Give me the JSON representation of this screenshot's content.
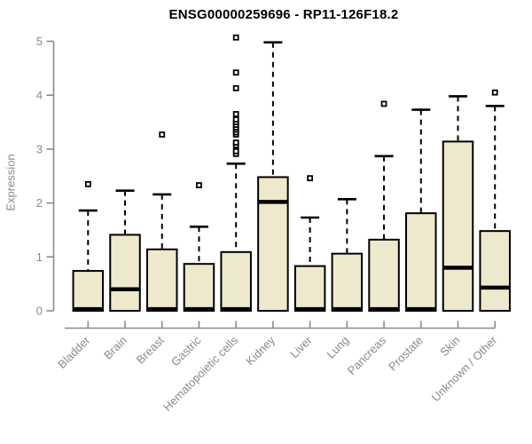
{
  "chart_data": {
    "type": "boxplot",
    "title": "ENSG00000259696 - RP11-126F18.2",
    "ylabel": "Expression",
    "xlabel": "",
    "ylim": [
      0,
      5
    ],
    "yticks": [
      0,
      1,
      2,
      3,
      4,
      5
    ],
    "grid": "off",
    "legend": "none",
    "categories": [
      "Bladder",
      "Brain",
      "Breast",
      "Gastric",
      "Hematopoietic cells",
      "Kidney",
      "Liver",
      "Lung",
      "Pancreas",
      "Prostate",
      "Skin",
      "Unknown / Other"
    ],
    "series": [
      {
        "name": "Bladder",
        "q1": 0,
        "median": 0.03,
        "q3": 0.74,
        "whisker_low": 0,
        "whisker_high": 1.86,
        "outliers": [
          2.35
        ]
      },
      {
        "name": "Brain",
        "q1": 0,
        "median": 0.4,
        "q3": 1.41,
        "whisker_low": 0,
        "whisker_high": 2.23,
        "outliers": []
      },
      {
        "name": "Breast",
        "q1": 0,
        "median": 0.03,
        "q3": 1.14,
        "whisker_low": 0,
        "whisker_high": 2.16,
        "outliers": [
          3.27
        ]
      },
      {
        "name": "Gastric",
        "q1": 0,
        "median": 0.03,
        "q3": 0.87,
        "whisker_low": 0,
        "whisker_high": 1.56,
        "outliers": [
          2.33
        ]
      },
      {
        "name": "Hematopoietic cells",
        "q1": 0,
        "median": 0.03,
        "q3": 1.09,
        "whisker_low": 0,
        "whisker_high": 2.73,
        "outliers": [
          2.91,
          2.96,
          3.07,
          3.12,
          3.27,
          3.31,
          3.36,
          3.4,
          3.45,
          3.5,
          3.55,
          3.65,
          4.13,
          4.42,
          5.07
        ]
      },
      {
        "name": "Kidney",
        "q1": 0,
        "median": 2.02,
        "q3": 2.48,
        "whisker_low": 0,
        "whisker_high": 4.98,
        "outliers": []
      },
      {
        "name": "Liver",
        "q1": 0,
        "median": 0.03,
        "q3": 0.83,
        "whisker_low": 0,
        "whisker_high": 1.73,
        "outliers": [
          2.46
        ]
      },
      {
        "name": "Lung",
        "q1": 0,
        "median": 0.03,
        "q3": 1.06,
        "whisker_low": 0,
        "whisker_high": 2.07,
        "outliers": []
      },
      {
        "name": "Pancreas",
        "q1": 0,
        "median": 0.03,
        "q3": 1.32,
        "whisker_low": 0,
        "whisker_high": 2.87,
        "outliers": [
          3.84
        ]
      },
      {
        "name": "Prostate",
        "q1": 0,
        "median": 0.03,
        "q3": 1.81,
        "whisker_low": 0,
        "whisker_high": 3.73,
        "outliers": []
      },
      {
        "name": "Skin",
        "q1": 0,
        "median": 0.8,
        "q3": 3.14,
        "whisker_low": 0,
        "whisker_high": 3.98,
        "outliers": []
      },
      {
        "name": "Unknown / Other",
        "q1": 0,
        "median": 0.43,
        "q3": 1.48,
        "whisker_low": 0,
        "whisker_high": 3.8,
        "outliers": [
          4.05
        ]
      }
    ],
    "colors": {
      "background": "#ffffff",
      "box_fill": "#EEE8CD",
      "box_stroke": "#000000",
      "median": "#000000",
      "whisker": "#000000",
      "outlier_fill": "#ffffff",
      "outlier_stroke": "#000000",
      "axis": "#8a8a8a",
      "tick_text": "#8a8a8a",
      "title_text": "#000000"
    }
  }
}
